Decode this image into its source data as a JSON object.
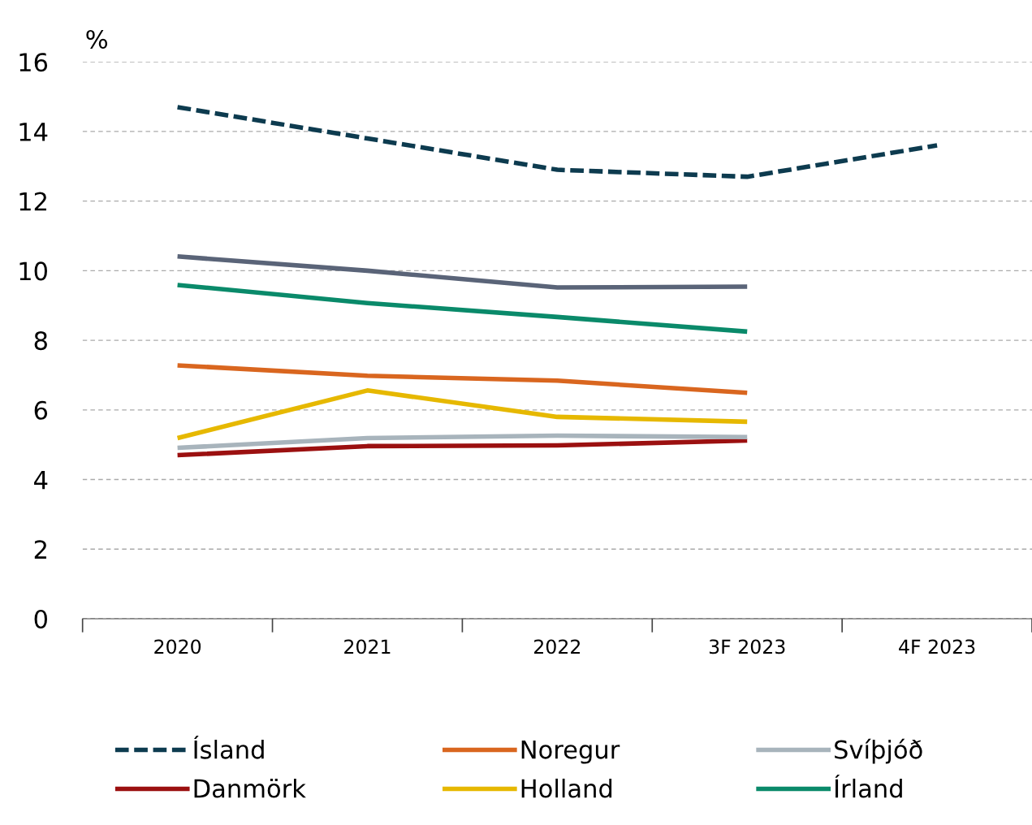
{
  "chart_data": {
    "type": "line",
    "ylabel": "%",
    "categories": [
      "2020",
      "2021",
      "2022",
      "3F 2023",
      "4F 2023"
    ],
    "ylim": [
      0,
      16
    ],
    "yticks": [
      0,
      2,
      4,
      6,
      8,
      10,
      12,
      14,
      16
    ],
    "grid": "y",
    "legend": "bottom",
    "line_style": "solid",
    "marker": "none",
    "series": [
      {
        "name": "Ísland",
        "color": "#0d3b4f",
        "line_style": "dashed",
        "values": [
          14.7,
          13.8,
          12.9,
          12.7,
          13.6
        ]
      },
      {
        "name": "Danmörk",
        "color": "#9b1010",
        "values": [
          4.7,
          4.96,
          4.98,
          5.12,
          null
        ]
      },
      {
        "name": "Noregur",
        "color": "#d9661f",
        "values": [
          7.28,
          6.98,
          6.84,
          6.49,
          null
        ]
      },
      {
        "name": "Holland",
        "color": "#e6b800",
        "values": [
          5.19,
          6.56,
          5.8,
          5.66,
          null
        ]
      },
      {
        "name": "Svíþjóð",
        "color": "#a8b4bc",
        "values": [
          4.91,
          5.19,
          5.26,
          5.22,
          null
        ]
      },
      {
        "name": "Írland",
        "color": "#0a8a6a",
        "values": [
          9.59,
          9.07,
          8.67,
          8.25,
          null
        ]
      },
      {
        "color": "#5a6478",
        "values": [
          10.41,
          10.0,
          9.52,
          9.54,
          null
        ]
      }
    ]
  }
}
